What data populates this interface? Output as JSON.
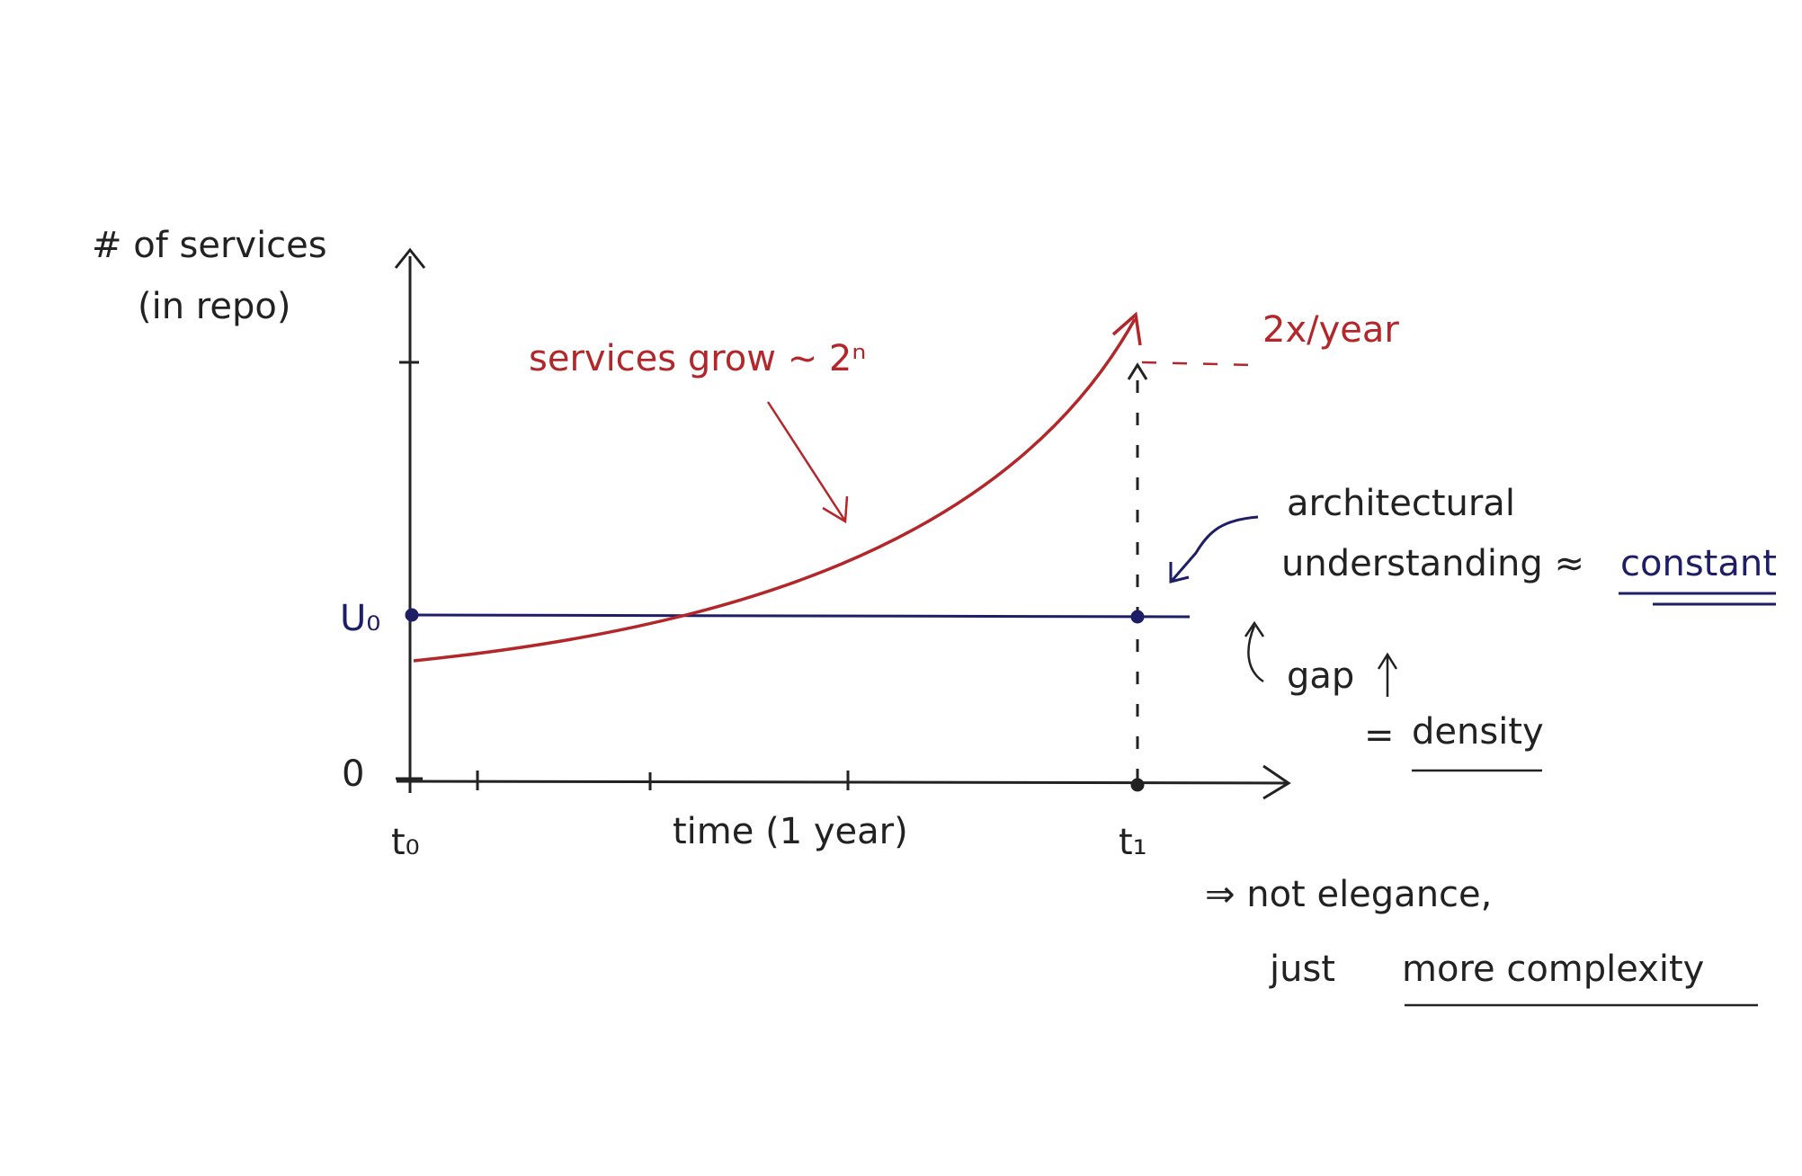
{
  "axes": {
    "y_label": [
      "# of services",
      "(in repo)"
    ],
    "x_label": "time (1 year)",
    "y_zero": "0",
    "y_u0": "U₀",
    "x_t0": "t₀",
    "x_t1": "t₁"
  },
  "annotations": {
    "growth": "services grow ~ 2ⁿ",
    "rate": "2x/year",
    "understanding": [
      "architectural",
      "understanding ≈",
      "constant"
    ],
    "gap": "gap",
    "density": [
      "=",
      "density"
    ],
    "conclusion": [
      "⇒ not elegance,",
      "just",
      "more complexity"
    ]
  }
}
